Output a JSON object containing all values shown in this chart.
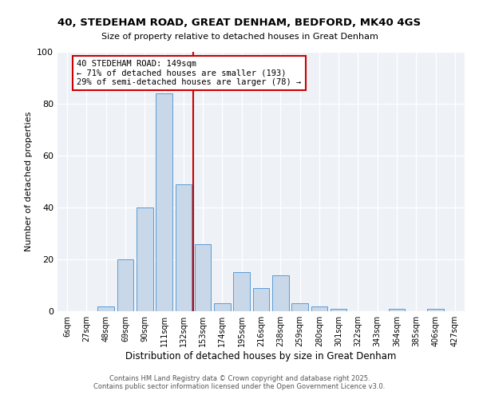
{
  "title1": "40, STEDEHAM ROAD, GREAT DENHAM, BEDFORD, MK40 4GS",
  "title2": "Size of property relative to detached houses in Great Denham",
  "xlabel": "Distribution of detached houses by size in Great Denham",
  "ylabel": "Number of detached properties",
  "bar_labels": [
    "6sqm",
    "27sqm",
    "48sqm",
    "69sqm",
    "90sqm",
    "111sqm",
    "132sqm",
    "153sqm",
    "174sqm",
    "195sqm",
    "216sqm",
    "238sqm",
    "259sqm",
    "280sqm",
    "301sqm",
    "322sqm",
    "343sqm",
    "364sqm",
    "385sqm",
    "406sqm",
    "427sqm"
  ],
  "bar_values": [
    0,
    0,
    2,
    20,
    40,
    84,
    49,
    26,
    3,
    15,
    9,
    14,
    3,
    2,
    1,
    0,
    0,
    1,
    0,
    1,
    0
  ],
  "bar_color": "#c8d8e8",
  "bar_edgecolor": "#5b9bd5",
  "vline_color": "#cc0000",
  "annotation_title": "40 STEDEHAM ROAD: 149sqm",
  "annotation_line1": "← 71% of detached houses are smaller (193)",
  "annotation_line2": "29% of semi-detached houses are larger (78) →",
  "box_edgecolor": "#cc0000",
  "ylim": [
    0,
    100
  ],
  "background_color": "#eef2f7",
  "footer1": "Contains HM Land Registry data © Crown copyright and database right 2025.",
  "footer2": "Contains public sector information licensed under the Open Government Licence v3.0."
}
